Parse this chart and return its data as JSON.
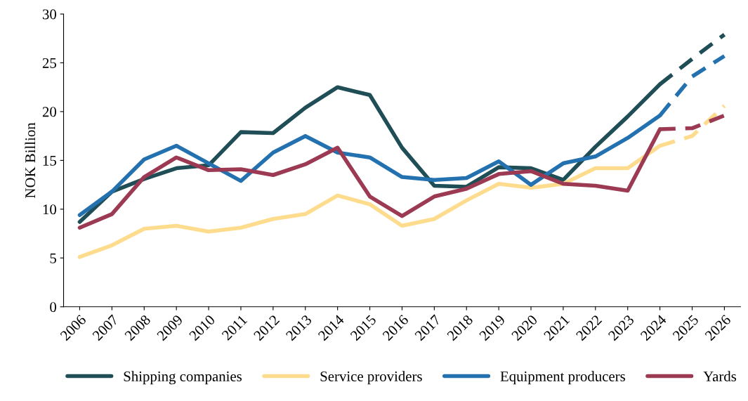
{
  "chart_data": {
    "type": "line",
    "ylabel": "NOK Billion",
    "categories": [
      "2006",
      "2007",
      "2008",
      "2009",
      "2010",
      "2011",
      "2012",
      "2013",
      "2014",
      "2015",
      "2016",
      "2017",
      "2018",
      "2019",
      "2020",
      "2021",
      "2022",
      "2023",
      "2024",
      "2025",
      "2026"
    ],
    "series": [
      {
        "name": "Shipping companies",
        "color": "#1f4e57",
        "values": [
          8.7,
          11.8,
          13.1,
          14.2,
          14.5,
          17.9,
          17.8,
          20.4,
          22.5,
          21.7,
          16.3,
          12.4,
          12.3,
          14.3,
          14.2,
          13.0,
          16.4,
          19.5,
          22.8,
          null,
          null
        ]
      },
      {
        "name": "Service providers",
        "color": "#fddc8e",
        "values": [
          5.1,
          6.3,
          8.0,
          8.3,
          7.7,
          8.1,
          9.0,
          9.5,
          11.4,
          10.5,
          8.3,
          9.0,
          10.9,
          12.6,
          12.2,
          12.6,
          14.2,
          14.2,
          16.5,
          null,
          null
        ]
      },
      {
        "name": "Equipment producers",
        "color": "#2471b0",
        "values": [
          9.4,
          11.8,
          15.1,
          16.5,
          14.7,
          12.9,
          15.8,
          17.5,
          15.8,
          15.3,
          13.3,
          13.0,
          13.2,
          14.9,
          12.5,
          14.7,
          15.4,
          17.3,
          19.6,
          null,
          null
        ]
      },
      {
        "name": "Yards",
        "color": "#9b3a52",
        "values": [
          8.1,
          9.5,
          13.3,
          15.3,
          14.0,
          14.1,
          13.5,
          14.6,
          16.3,
          11.3,
          9.3,
          11.3,
          12.1,
          13.6,
          13.9,
          12.6,
          12.4,
          11.9,
          18.2,
          null,
          null
        ]
      },
      {
        "color": "#1f4e57",
        "line_style": "dashed",
        "values": [
          null,
          null,
          null,
          null,
          null,
          null,
          null,
          null,
          null,
          null,
          null,
          null,
          null,
          null,
          null,
          null,
          null,
          null,
          22.8,
          25.4,
          27.9
        ]
      },
      {
        "color": "#fddc8e",
        "line_style": "dashed",
        "values": [
          null,
          null,
          null,
          null,
          null,
          null,
          null,
          null,
          null,
          null,
          null,
          null,
          null,
          null,
          null,
          null,
          null,
          null,
          16.5,
          17.5,
          20.6
        ]
      },
      {
        "color": "#2471b0",
        "line_style": "dashed",
        "values": [
          null,
          null,
          null,
          null,
          null,
          null,
          null,
          null,
          null,
          null,
          null,
          null,
          null,
          null,
          null,
          null,
          null,
          null,
          19.6,
          23.6,
          25.7
        ]
      },
      {
        "color": "#9b3a52",
        "line_style": "dashed",
        "values": [
          null,
          null,
          null,
          null,
          null,
          null,
          null,
          null,
          null,
          null,
          null,
          null,
          null,
          null,
          null,
          null,
          null,
          null,
          18.2,
          18.3,
          19.6
        ]
      }
    ],
    "ylim": [
      0,
      30
    ],
    "yticks": [
      0,
      5,
      10,
      15,
      20,
      25,
      30
    ],
    "grid": false,
    "legend": "bottom",
    "line_style": "solid",
    "marker": "none"
  }
}
